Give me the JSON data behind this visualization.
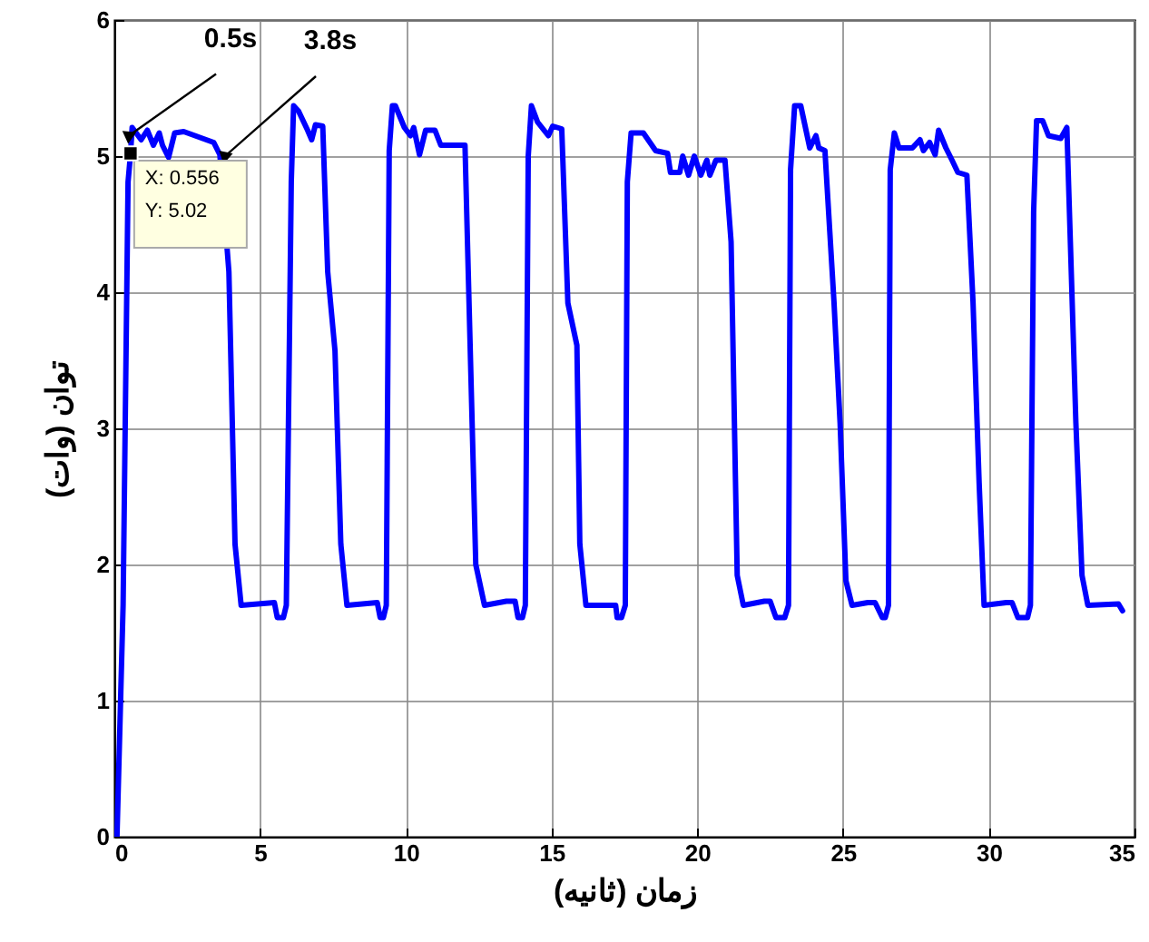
{
  "chart_data": {
    "type": "line",
    "xlabel": "زمان (ثانیه)",
    "ylabel": "توان (وات)",
    "xlim": [
      0,
      35
    ],
    "xticks": [
      0,
      5,
      10,
      15,
      20,
      25,
      30,
      35
    ],
    "ylim": [
      0,
      6
    ],
    "yticks": [
      0,
      1,
      2,
      3,
      4,
      5,
      6
    ],
    "grid": true,
    "marker": "none",
    "line_style": "solid",
    "series": [
      {
        "color": "#0000ff",
        "x": [
          0.09,
          0.3,
          0.47,
          0.556,
          0.61,
          0.92,
          1.13,
          1.34,
          1.54,
          1.65,
          1.86,
          2.07,
          2.38,
          3.41,
          3.62,
          3.93,
          4.14,
          4.35,
          5.49,
          5.59,
          5.8,
          5.9,
          6.07,
          6.15,
          6.32,
          6.63,
          6.77,
          6.9,
          7.15,
          7.32,
          7.57,
          7.77,
          7.98,
          9.02,
          9.12,
          9.23,
          9.33,
          9.43,
          9.54,
          9.64,
          9.95,
          10.16,
          10.27,
          10.47,
          10.68,
          11.0,
          11.2,
          12.03,
          12.4,
          12.7,
          13.45,
          13.75,
          13.85,
          14.0,
          14.1,
          14.2,
          14.31,
          14.52,
          14.89,
          15.04,
          15.35,
          15.56,
          15.87,
          15.97,
          16.18,
          17.2,
          17.25,
          17.4,
          17.53,
          17.6,
          17.73,
          18.15,
          18.57,
          18.98,
          19.08,
          19.4,
          19.5,
          19.7,
          19.9,
          20.12,
          20.33,
          20.43,
          20.64,
          20.95,
          21.16,
          21.37,
          21.58,
          22.3,
          22.5,
          22.7,
          23.0,
          23.13,
          23.2,
          23.34,
          23.55,
          23.86,
          24.07,
          24.17,
          24.38,
          24.69,
          24.9,
          25.1,
          25.31,
          25.85,
          26.1,
          26.35,
          26.45,
          26.56,
          26.62,
          26.76,
          26.92,
          27.38,
          27.64,
          27.76,
          27.97,
          28.16,
          28.28,
          28.53,
          28.74,
          28.94,
          29.25,
          29.46,
          29.67,
          29.84,
          30.6,
          30.8,
          31.0,
          31.33,
          31.43,
          31.54,
          31.64,
          31.85,
          32.05,
          32.47,
          32.68,
          32.99,
          33.2,
          33.4,
          34.45,
          34.59
        ],
        "values": [
          0,
          1.7,
          4.81,
          5.02,
          5.21,
          5.12,
          5.19,
          5.08,
          5.17,
          5.08,
          4.99,
          5.17,
          5.18,
          5.1,
          5.01,
          4.15,
          2.15,
          1.7,
          1.72,
          1.61,
          1.61,
          1.7,
          4.81,
          5.37,
          5.33,
          5.19,
          5.12,
          5.23,
          5.22,
          4.15,
          3.57,
          2.15,
          1.7,
          1.72,
          1.61,
          1.61,
          1.7,
          5.04,
          5.37,
          5.37,
          5.21,
          5.15,
          5.21,
          5.01,
          5.19,
          5.19,
          5.08,
          5.08,
          2.0,
          1.7,
          1.73,
          1.73,
          1.61,
          1.61,
          1.7,
          5.0,
          5.37,
          5.25,
          5.15,
          5.22,
          5.2,
          3.92,
          3.61,
          2.15,
          1.7,
          1.7,
          1.61,
          1.61,
          1.7,
          4.81,
          5.17,
          5.17,
          5.04,
          5.02,
          4.88,
          4.88,
          5.0,
          4.86,
          5.0,
          4.86,
          4.97,
          4.86,
          4.97,
          4.97,
          4.37,
          1.92,
          1.7,
          1.73,
          1.73,
          1.61,
          1.61,
          1.7,
          4.9,
          5.37,
          5.37,
          5.06,
          5.15,
          5.06,
          5.04,
          3.93,
          3.04,
          1.88,
          1.7,
          1.72,
          1.72,
          1.61,
          1.61,
          1.7,
          4.9,
          5.17,
          5.06,
          5.06,
          5.12,
          5.04,
          5.1,
          5.01,
          5.19,
          5.06,
          4.97,
          4.88,
          4.86,
          3.93,
          2.6,
          1.7,
          1.72,
          1.72,
          1.61,
          1.61,
          1.7,
          4.59,
          5.26,
          5.26,
          5.15,
          5.13,
          5.21,
          3.04,
          1.92,
          1.7,
          1.71,
          1.66
        ]
      }
    ],
    "annotations": [
      {
        "text": "0.5s",
        "x": 0.5,
        "y": 5.15
      },
      {
        "text": "3.8s",
        "x": 3.8,
        "y": 5.0
      },
      {
        "text": "X: 0.556",
        "x": 0.556,
        "y": 5.02
      },
      {
        "text": "Y: 5.02",
        "x": 0.556,
        "y": 5.02
      }
    ]
  }
}
